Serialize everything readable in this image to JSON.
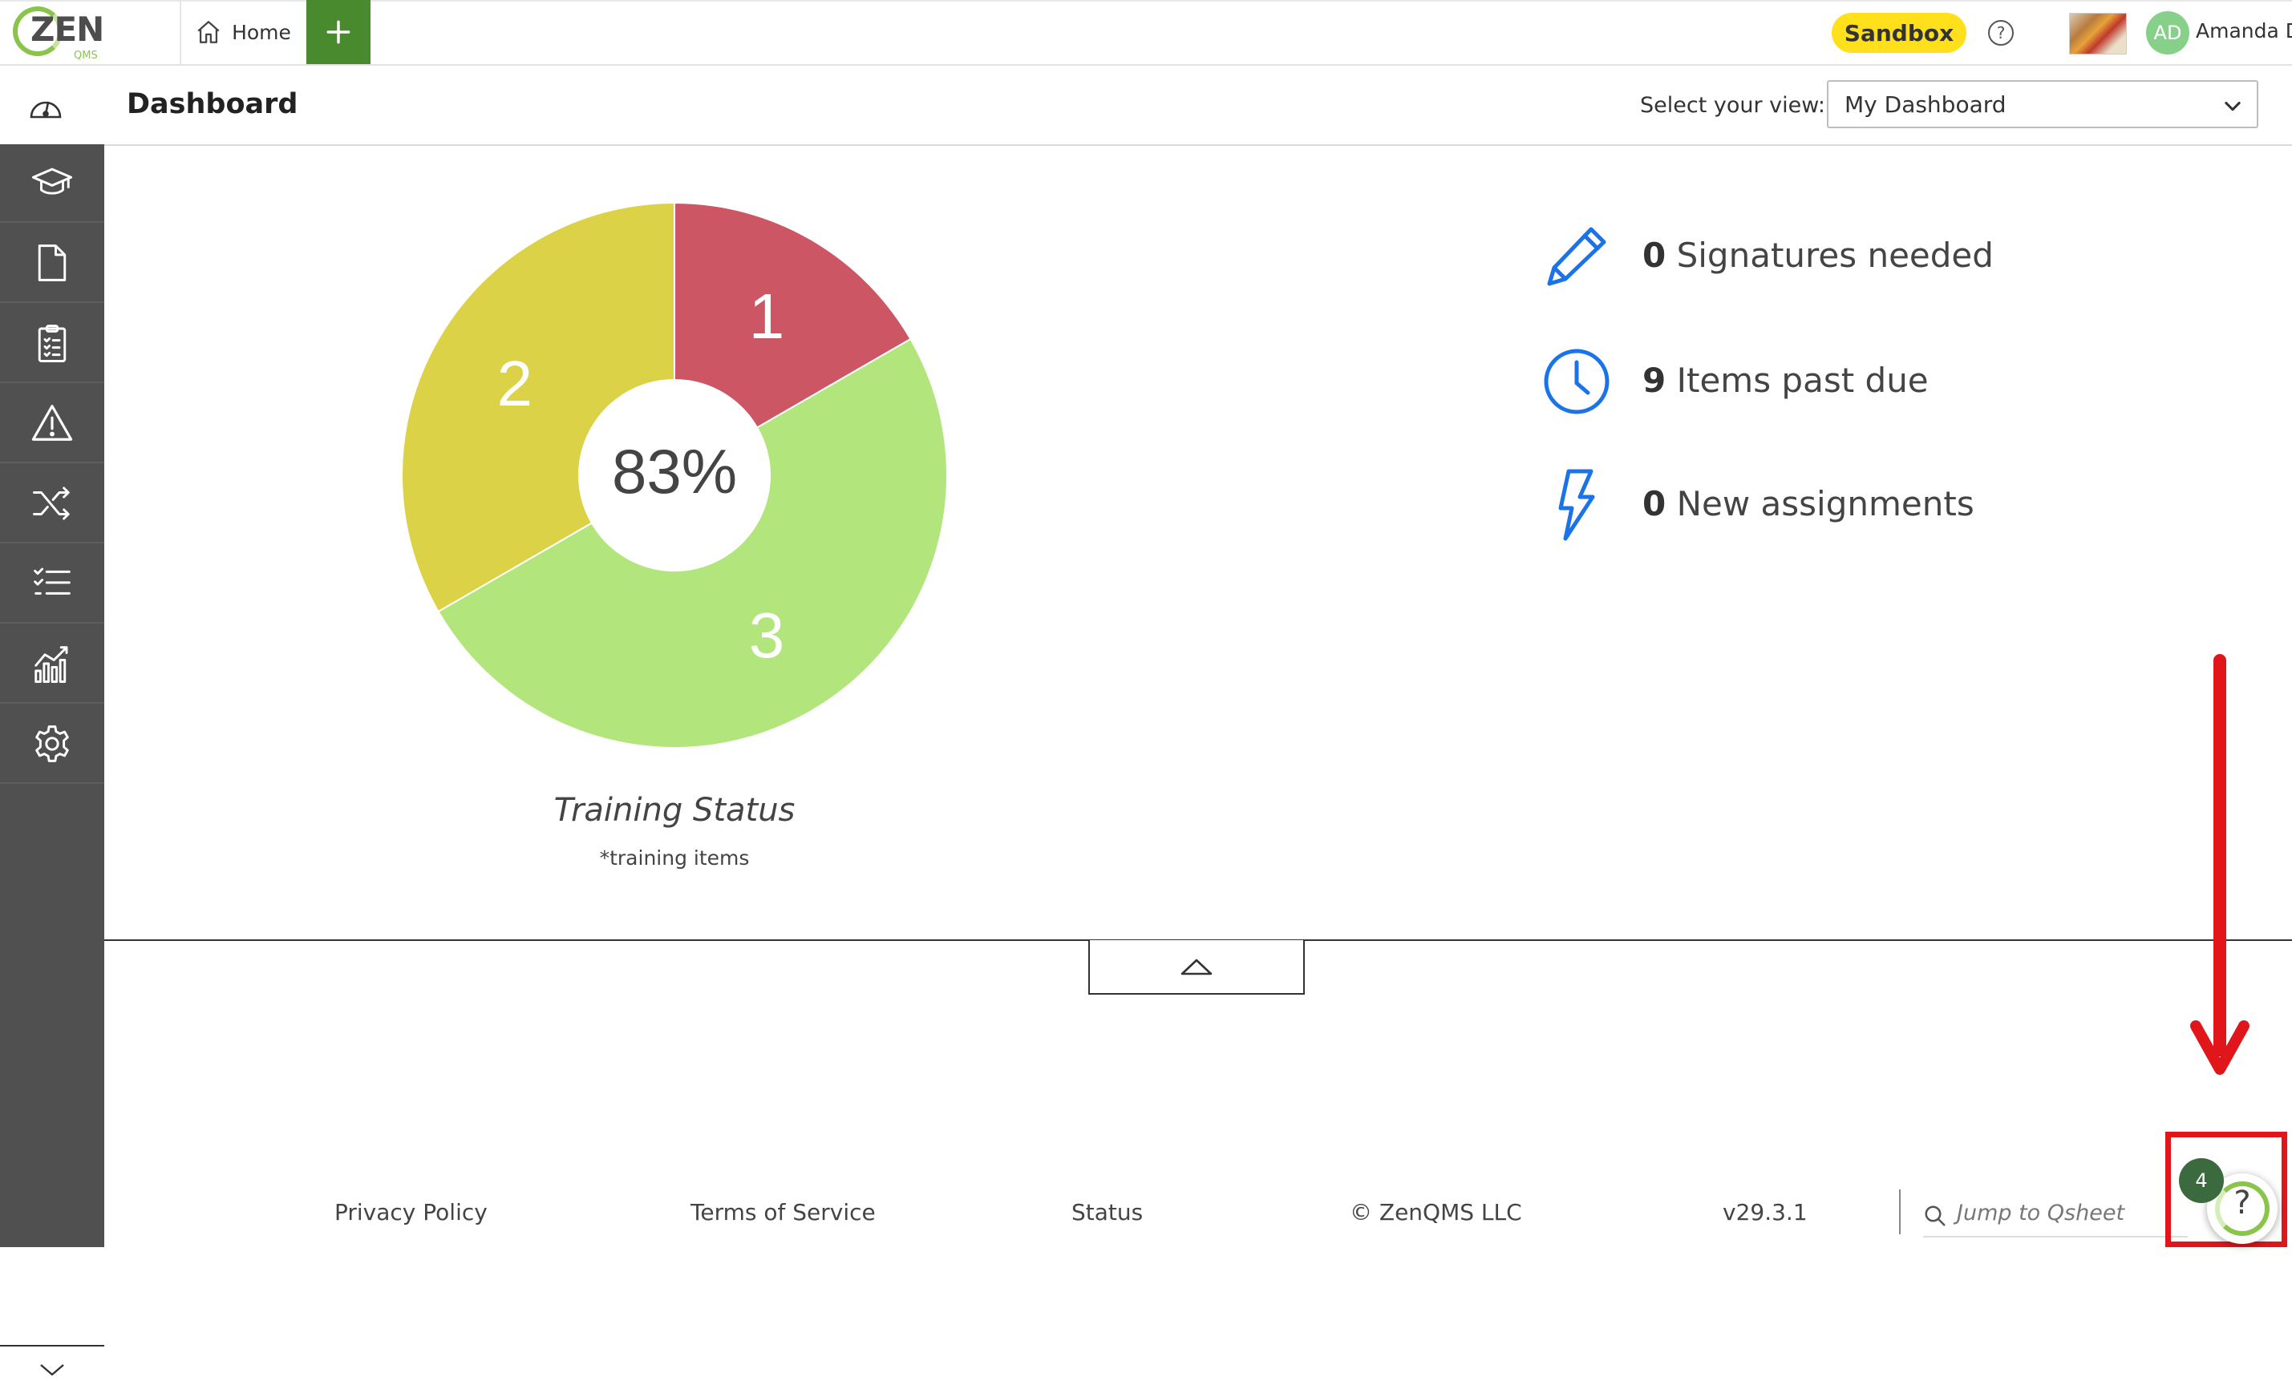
{
  "app": {
    "logo_text": "ZEN",
    "logo_sub": "QMS"
  },
  "topbar": {
    "home_label": "Home",
    "sandbox_label": "Sandbox",
    "user_initials": "AD",
    "user_name": "Amanda D",
    "help_glyph": "?"
  },
  "header": {
    "title": "Dashboard",
    "view_label": "Select your view:",
    "view_selected": "My Dashboard"
  },
  "sidebar": {
    "items": [
      {
        "name": "training",
        "icon": "graduation-cap-icon"
      },
      {
        "name": "documents",
        "icon": "document-icon"
      },
      {
        "name": "checklists",
        "icon": "clipboard-icon"
      },
      {
        "name": "risk",
        "icon": "warning-icon"
      },
      {
        "name": "change",
        "icon": "shuffle-icon"
      },
      {
        "name": "tasks",
        "icon": "checklist-icon"
      },
      {
        "name": "reports",
        "icon": "analytics-icon"
      },
      {
        "name": "settings",
        "icon": "gear-icon"
      }
    ]
  },
  "chart_data": {
    "type": "pie",
    "title": "Training Status",
    "subtitle": "*training items",
    "center_label": "83%",
    "categories": [
      "red",
      "green",
      "yellow"
    ],
    "values": [
      1,
      3,
      2
    ],
    "colors": [
      "#cd5664",
      "#b2e57b",
      "#dcd248"
    ]
  },
  "stats": [
    {
      "count": "0",
      "label": "Signatures needed",
      "icon": "pencil-icon"
    },
    {
      "count": "9",
      "label": "Items past due",
      "icon": "clock-icon"
    },
    {
      "count": "0",
      "label": "New assignments",
      "icon": "lightning-icon"
    }
  ],
  "footer": {
    "privacy": "Privacy Policy",
    "terms": "Terms of Service",
    "status": "Status",
    "copyright": "© ZenQMS LLC",
    "version": "v29.3.1",
    "search_placeholder": "Jump to Qsheet"
  },
  "help_widget": {
    "count": "4",
    "glyph": "?"
  },
  "colors": {
    "accent_green": "#4a8a2e",
    "sandbox_yellow": "#ffe01a",
    "sidebar": "#505050",
    "icon_blue": "#1a73e8",
    "annotation_red": "#e0161b"
  }
}
